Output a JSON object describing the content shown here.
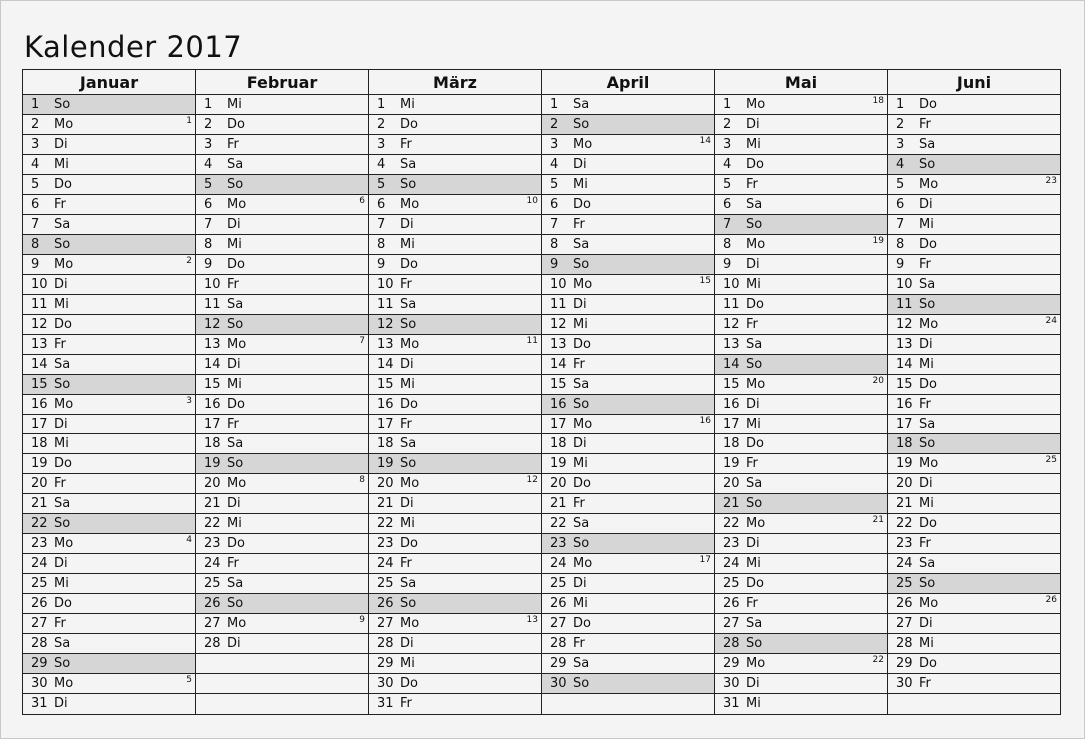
{
  "title": "Kalender 2017",
  "colors": {
    "background": "#f4f4f4",
    "sunday_fill": "#d6d6d6",
    "grid": "#222222"
  },
  "months": [
    {
      "name": "Januar",
      "days": [
        [
          "1",
          "So"
        ],
        [
          "2",
          "Mo",
          "1"
        ],
        [
          "3",
          "Di"
        ],
        [
          "4",
          "Mi"
        ],
        [
          "5",
          "Do"
        ],
        [
          "6",
          "Fr"
        ],
        [
          "7",
          "Sa"
        ],
        [
          "8",
          "So"
        ],
        [
          "9",
          "Mo",
          "2"
        ],
        [
          "10",
          "Di"
        ],
        [
          "11",
          "Mi"
        ],
        [
          "12",
          "Do"
        ],
        [
          "13",
          "Fr"
        ],
        [
          "14",
          "Sa"
        ],
        [
          "15",
          "So"
        ],
        [
          "16",
          "Mo",
          "3"
        ],
        [
          "17",
          "Di"
        ],
        [
          "18",
          "Mi"
        ],
        [
          "19",
          "Do"
        ],
        [
          "20",
          "Fr"
        ],
        [
          "21",
          "Sa"
        ],
        [
          "22",
          "So"
        ],
        [
          "23",
          "Mo",
          "4"
        ],
        [
          "24",
          "Di"
        ],
        [
          "25",
          "Mi"
        ],
        [
          "26",
          "Do"
        ],
        [
          "27",
          "Fr"
        ],
        [
          "28",
          "Sa"
        ],
        [
          "29",
          "So"
        ],
        [
          "30",
          "Mo",
          "5"
        ],
        [
          "31",
          "Di"
        ]
      ]
    },
    {
      "name": "Februar",
      "days": [
        [
          "1",
          "Mi"
        ],
        [
          "2",
          "Do"
        ],
        [
          "3",
          "Fr"
        ],
        [
          "4",
          "Sa"
        ],
        [
          "5",
          "So"
        ],
        [
          "6",
          "Mo",
          "6"
        ],
        [
          "7",
          "Di"
        ],
        [
          "8",
          "Mi"
        ],
        [
          "9",
          "Do"
        ],
        [
          "10",
          "Fr"
        ],
        [
          "11",
          "Sa"
        ],
        [
          "12",
          "So"
        ],
        [
          "13",
          "Mo",
          "7"
        ],
        [
          "14",
          "Di"
        ],
        [
          "15",
          "Mi"
        ],
        [
          "16",
          "Do"
        ],
        [
          "17",
          "Fr"
        ],
        [
          "18",
          "Sa"
        ],
        [
          "19",
          "So"
        ],
        [
          "20",
          "Mo",
          "8"
        ],
        [
          "21",
          "Di"
        ],
        [
          "22",
          "Mi"
        ],
        [
          "23",
          "Do"
        ],
        [
          "24",
          "Fr"
        ],
        [
          "25",
          "Sa"
        ],
        [
          "26",
          "So"
        ],
        [
          "27",
          "Mo",
          "9"
        ],
        [
          "28",
          "Di"
        ]
      ]
    },
    {
      "name": "März",
      "days": [
        [
          "1",
          "Mi"
        ],
        [
          "2",
          "Do"
        ],
        [
          "3",
          "Fr"
        ],
        [
          "4",
          "Sa"
        ],
        [
          "5",
          "So"
        ],
        [
          "6",
          "Mo",
          "10"
        ],
        [
          "7",
          "Di"
        ],
        [
          "8",
          "Mi"
        ],
        [
          "9",
          "Do"
        ],
        [
          "10",
          "Fr"
        ],
        [
          "11",
          "Sa"
        ],
        [
          "12",
          "So"
        ],
        [
          "13",
          "Mo",
          "11"
        ],
        [
          "14",
          "Di"
        ],
        [
          "15",
          "Mi"
        ],
        [
          "16",
          "Do"
        ],
        [
          "17",
          "Fr"
        ],
        [
          "18",
          "Sa"
        ],
        [
          "19",
          "So"
        ],
        [
          "20",
          "Mo",
          "12"
        ],
        [
          "21",
          "Di"
        ],
        [
          "22",
          "Mi"
        ],
        [
          "23",
          "Do"
        ],
        [
          "24",
          "Fr"
        ],
        [
          "25",
          "Sa"
        ],
        [
          "26",
          "So"
        ],
        [
          "27",
          "Mo",
          "13"
        ],
        [
          "28",
          "Di"
        ],
        [
          "29",
          "Mi"
        ],
        [
          "30",
          "Do"
        ],
        [
          "31",
          "Fr"
        ]
      ]
    },
    {
      "name": "April",
      "days": [
        [
          "1",
          "Sa"
        ],
        [
          "2",
          "So"
        ],
        [
          "3",
          "Mo",
          "14"
        ],
        [
          "4",
          "Di"
        ],
        [
          "5",
          "Mi"
        ],
        [
          "6",
          "Do"
        ],
        [
          "7",
          "Fr"
        ],
        [
          "8",
          "Sa"
        ],
        [
          "9",
          "So"
        ],
        [
          "10",
          "Mo",
          "15"
        ],
        [
          "11",
          "Di"
        ],
        [
          "12",
          "Mi"
        ],
        [
          "13",
          "Do"
        ],
        [
          "14",
          "Fr"
        ],
        [
          "15",
          "Sa"
        ],
        [
          "16",
          "So"
        ],
        [
          "17",
          "Mo",
          "16"
        ],
        [
          "18",
          "Di"
        ],
        [
          "19",
          "Mi"
        ],
        [
          "20",
          "Do"
        ],
        [
          "21",
          "Fr"
        ],
        [
          "22",
          "Sa"
        ],
        [
          "23",
          "So"
        ],
        [
          "24",
          "Mo",
          "17"
        ],
        [
          "25",
          "Di"
        ],
        [
          "26",
          "Mi"
        ],
        [
          "27",
          "Do"
        ],
        [
          "28",
          "Fr"
        ],
        [
          "29",
          "Sa"
        ],
        [
          "30",
          "So"
        ]
      ]
    },
    {
      "name": "Mai",
      "days": [
        [
          "1",
          "Mo",
          "18"
        ],
        [
          "2",
          "Di"
        ],
        [
          "3",
          "Mi"
        ],
        [
          "4",
          "Do"
        ],
        [
          "5",
          "Fr"
        ],
        [
          "6",
          "Sa"
        ],
        [
          "7",
          "So"
        ],
        [
          "8",
          "Mo",
          "19"
        ],
        [
          "9",
          "Di"
        ],
        [
          "10",
          "Mi"
        ],
        [
          "11",
          "Do"
        ],
        [
          "12",
          "Fr"
        ],
        [
          "13",
          "Sa"
        ],
        [
          "14",
          "So"
        ],
        [
          "15",
          "Mo",
          "20"
        ],
        [
          "16",
          "Di"
        ],
        [
          "17",
          "Mi"
        ],
        [
          "18",
          "Do"
        ],
        [
          "19",
          "Fr"
        ],
        [
          "20",
          "Sa"
        ],
        [
          "21",
          "So"
        ],
        [
          "22",
          "Mo",
          "21"
        ],
        [
          "23",
          "Di"
        ],
        [
          "24",
          "Mi"
        ],
        [
          "25",
          "Do"
        ],
        [
          "26",
          "Fr"
        ],
        [
          "27",
          "Sa"
        ],
        [
          "28",
          "So"
        ],
        [
          "29",
          "Mo",
          "22"
        ],
        [
          "30",
          "Di"
        ],
        [
          "31",
          "Mi"
        ]
      ]
    },
    {
      "name": "Juni",
      "days": [
        [
          "1",
          "Do"
        ],
        [
          "2",
          "Fr"
        ],
        [
          "3",
          "Sa"
        ],
        [
          "4",
          "So"
        ],
        [
          "5",
          "Mo",
          "23"
        ],
        [
          "6",
          "Di"
        ],
        [
          "7",
          "Mi"
        ],
        [
          "8",
          "Do"
        ],
        [
          "9",
          "Fr"
        ],
        [
          "10",
          "Sa"
        ],
        [
          "11",
          "So"
        ],
        [
          "12",
          "Mo",
          "24"
        ],
        [
          "13",
          "Di"
        ],
        [
          "14",
          "Mi"
        ],
        [
          "15",
          "Do"
        ],
        [
          "16",
          "Fr"
        ],
        [
          "17",
          "Sa"
        ],
        [
          "18",
          "So"
        ],
        [
          "19",
          "Mo",
          "25"
        ],
        [
          "20",
          "Di"
        ],
        [
          "21",
          "Mi"
        ],
        [
          "22",
          "Do"
        ],
        [
          "23",
          "Fr"
        ],
        [
          "24",
          "Sa"
        ],
        [
          "25",
          "So"
        ],
        [
          "26",
          "Mo",
          "26"
        ],
        [
          "27",
          "Di"
        ],
        [
          "28",
          "Mi"
        ],
        [
          "29",
          "Do"
        ],
        [
          "30",
          "Fr"
        ]
      ]
    }
  ]
}
